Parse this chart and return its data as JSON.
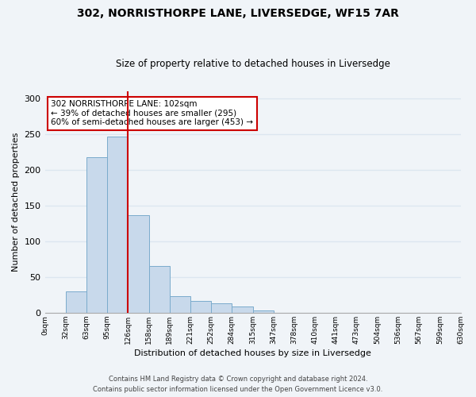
{
  "title": "302, NORRISTHORPE LANE, LIVERSEDGE, WF15 7AR",
  "subtitle": "Size of property relative to detached houses in Liversedge",
  "xlabel": "Distribution of detached houses by size in Liversedge",
  "ylabel": "Number of detached properties",
  "bar_values": [
    0,
    30,
    217,
    246,
    136,
    65,
    23,
    16,
    13,
    9,
    3,
    0,
    0,
    0,
    0,
    0,
    0,
    0,
    0,
    0
  ],
  "bin_labels": [
    "0sqm",
    "32sqm",
    "63sqm",
    "95sqm",
    "126sqm",
    "158sqm",
    "189sqm",
    "221sqm",
    "252sqm",
    "284sqm",
    "315sqm",
    "347sqm",
    "378sqm",
    "410sqm",
    "441sqm",
    "473sqm",
    "504sqm",
    "536sqm",
    "567sqm",
    "599sqm",
    "630sqm"
  ],
  "bar_color": "#c8d9eb",
  "bar_edge_color": "#7aabcc",
  "vline_x": 4,
  "vline_color": "#cc0000",
  "ylim": [
    0,
    310
  ],
  "yticks": [
    0,
    50,
    100,
    150,
    200,
    250,
    300
  ],
  "annotation_text": "302 NORRISTHORPE LANE: 102sqm\n← 39% of detached houses are smaller (295)\n60% of semi-detached houses are larger (453) →",
  "annotation_box_color": "#ffffff",
  "annotation_box_edge": "#cc0000",
  "footer_line1": "Contains HM Land Registry data © Crown copyright and database right 2024.",
  "footer_line2": "Contains public sector information licensed under the Open Government Licence v3.0.",
  "background_color": "#f0f4f8",
  "grid_color": "#dce6f0"
}
